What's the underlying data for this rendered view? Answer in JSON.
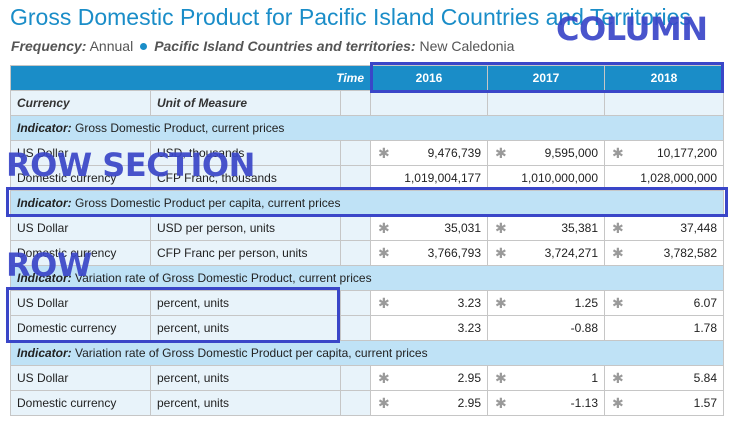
{
  "header": {
    "title": "Gross Domestic Product for Pacific Island Countries and Territories",
    "frequency_label": "Frequency:",
    "frequency_value": "Annual",
    "area_label": "Pacific Island Countries and territories:",
    "area_value": "New Caledonia"
  },
  "table": {
    "time_label": "Time",
    "years": [
      "2016",
      "2017",
      "2018"
    ],
    "col_currency": "Currency",
    "col_unit": "Unit of Measure",
    "indicator_prefix": "Indicator:",
    "sections": [
      {
        "indicator": "Gross Domestic Product, current prices",
        "rows": [
          {
            "currency": "US Dollar",
            "unit": "USD, thousands",
            "values": [
              "9,476,739",
              "9,595,000",
              "10,177,200"
            ],
            "stars": [
              true,
              true,
              true
            ]
          },
          {
            "currency": "Domestic currency",
            "unit": "CFP Franc, thousands",
            "values": [
              "1,019,004,177",
              "1,010,000,000",
              "1,028,000,000"
            ],
            "stars": [
              false,
              false,
              false
            ]
          }
        ]
      },
      {
        "indicator": "Gross Domestic Product per capita, current prices",
        "rows": [
          {
            "currency": "US Dollar",
            "unit": "USD per person, units",
            "values": [
              "35,031",
              "35,381",
              "37,448"
            ],
            "stars": [
              true,
              true,
              true
            ]
          },
          {
            "currency": "Domestic currency",
            "unit": "CFP Franc per person, units",
            "values": [
              "3,766,793",
              "3,724,271",
              "3,782,582"
            ],
            "stars": [
              true,
              true,
              true
            ]
          }
        ]
      },
      {
        "indicator": "Variation rate of Gross Domestic Product, current prices",
        "rows": [
          {
            "currency": "US Dollar",
            "unit": "percent, units",
            "values": [
              "3.23",
              "1.25",
              "6.07"
            ],
            "stars": [
              true,
              true,
              true
            ]
          },
          {
            "currency": "Domestic currency",
            "unit": "percent, units",
            "values": [
              "3.23",
              "-0.88",
              "1.78"
            ],
            "stars": [
              false,
              false,
              false
            ]
          }
        ]
      },
      {
        "indicator": "Variation rate of Gross Domestic Product per capita, current prices",
        "rows": [
          {
            "currency": "US Dollar",
            "unit": "percent, units",
            "values": [
              "2.95",
              "1",
              "5.84"
            ],
            "stars": [
              true,
              true,
              true
            ]
          },
          {
            "currency": "Domestic currency",
            "unit": "percent, units",
            "values": [
              "2.95",
              "-1.13",
              "1.57"
            ],
            "stars": [
              true,
              true,
              true
            ]
          }
        ]
      }
    ]
  },
  "annotations": {
    "column": "COLUMN",
    "row_section": "ROW SECTION",
    "row": "ROW"
  },
  "colors": {
    "accent": "#1a8dc8",
    "indicator_bg": "#bfe2f6",
    "label_bg": "#e8f3fa",
    "annotation": "#3a46c8"
  },
  "icons": {
    "star": "asterisk-icon"
  }
}
